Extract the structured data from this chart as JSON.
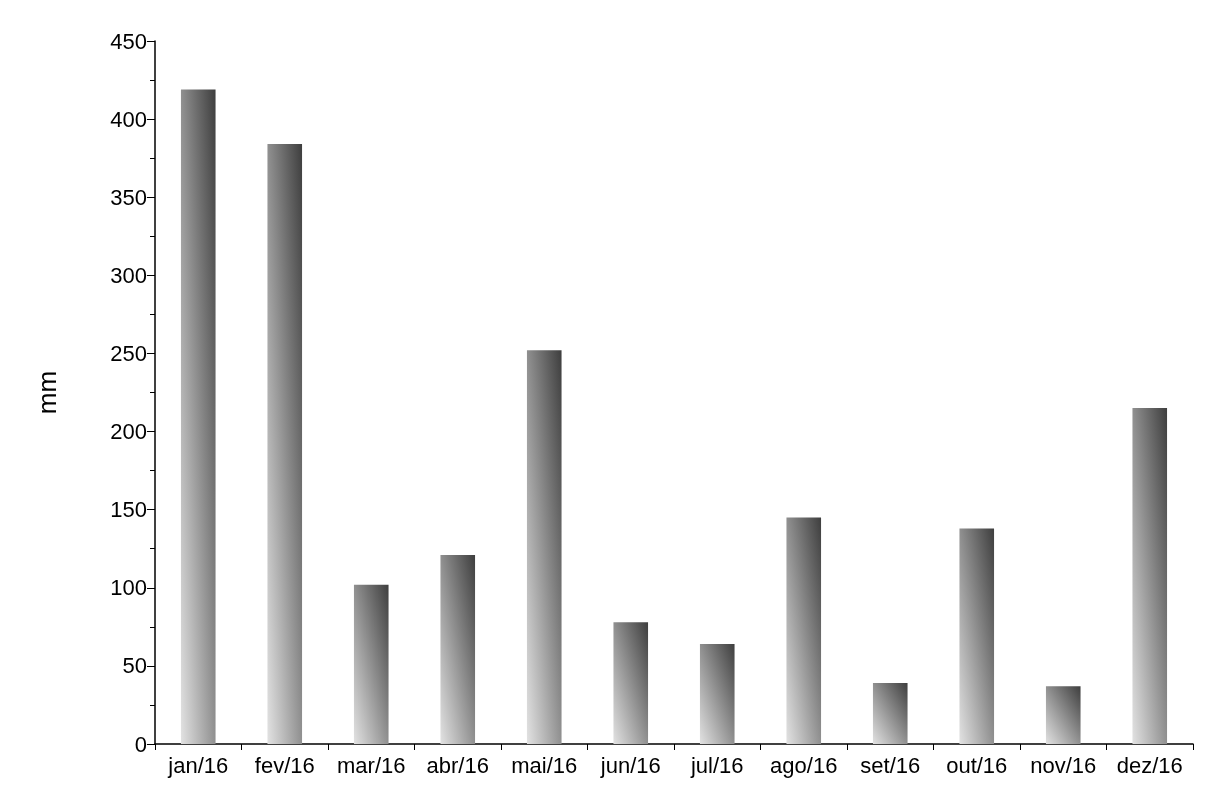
{
  "chart_data": {
    "type": "bar",
    "ylabel": "mm",
    "categories": [
      "jan/16",
      "fev/16",
      "mar/16",
      "abr/16",
      "mai/16",
      "jun/16",
      "jul/16",
      "ago/16",
      "set/16",
      "out/16",
      "nov/16",
      "dez/16"
    ],
    "values": [
      419,
      384,
      102,
      121,
      252,
      78,
      64,
      145,
      39,
      138,
      37,
      215
    ],
    "color": "#8a8a8a",
    "ylim": [
      0,
      450
    ],
    "yticks": [
      0,
      50,
      100,
      150,
      200,
      250,
      300,
      350,
      400,
      450
    ],
    "grid": false
  }
}
